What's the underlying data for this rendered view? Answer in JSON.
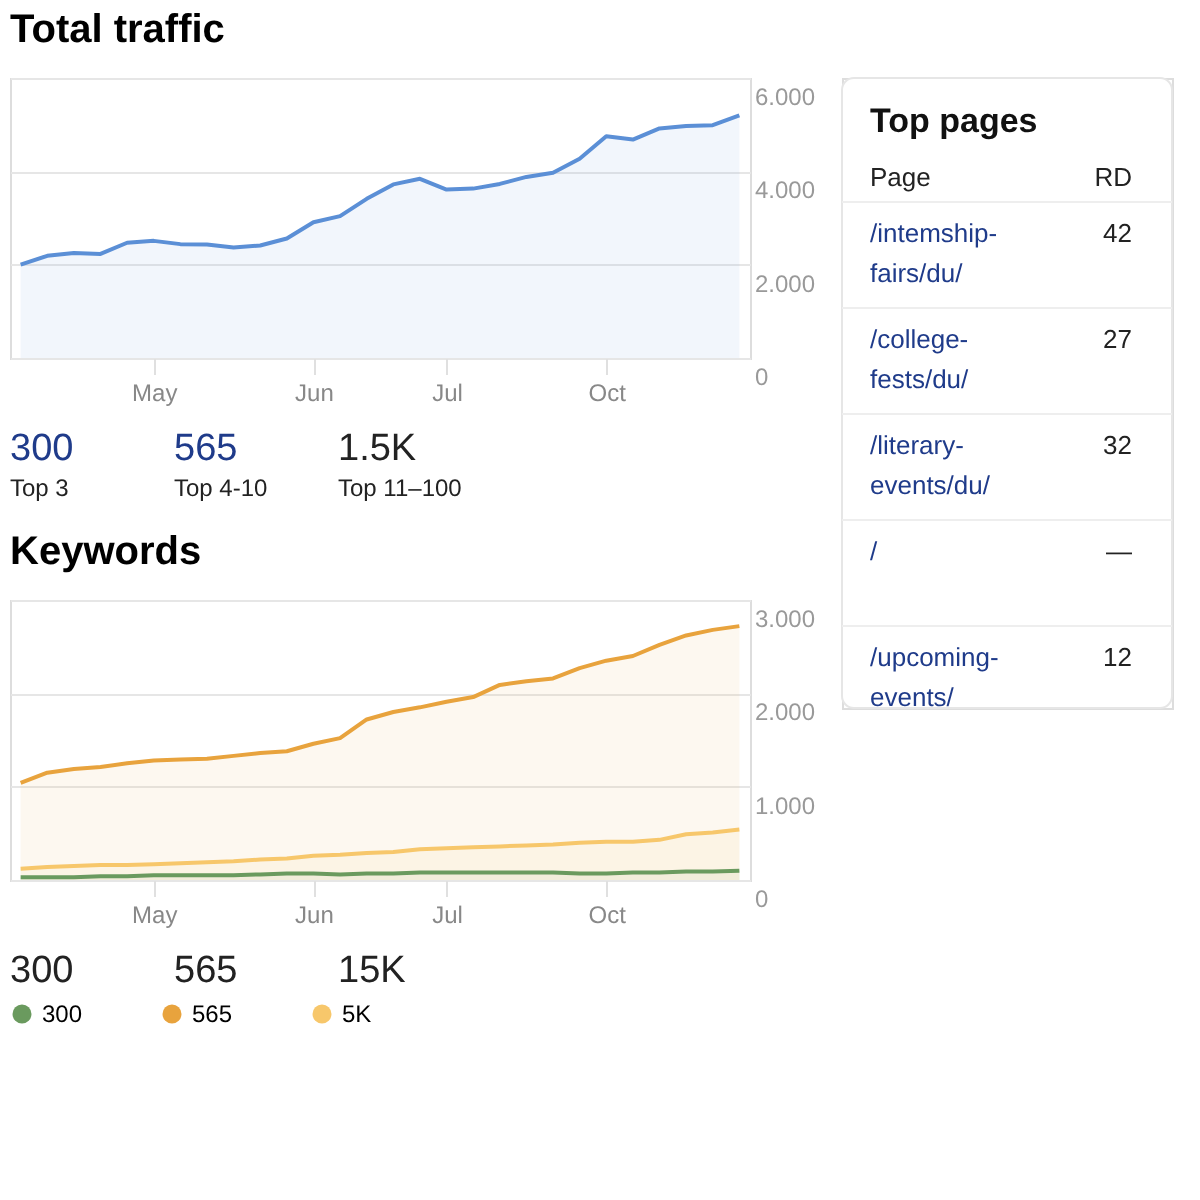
{
  "chart_data": [
    {
      "type": "area",
      "title": "Total traffic",
      "categories": [
        null,
        null,
        null,
        null,
        null,
        "May",
        null,
        null,
        null,
        null,
        null,
        "Jun",
        null,
        null,
        null,
        null,
        "Jul",
        null,
        null,
        null,
        null,
        null,
        "Oct",
        null,
        null,
        null,
        null,
        null
      ],
      "series": [
        {
          "color": "#5b8fd6",
          "values": [
            2.0,
            2.19,
            2.25,
            2.23,
            2.47,
            2.51,
            2.44,
            2.43,
            2.37,
            2.41,
            2.56,
            2.91,
            3.04,
            3.41,
            3.72,
            3.84,
            3.61,
            3.63,
            3.73,
            3.88,
            3.97,
            4.27,
            4.75,
            4.68,
            4.92,
            4.97,
            4.99,
            5.2
          ]
        }
      ],
      "ylim": [
        0,
        6
      ],
      "yticks": [
        0,
        {
          "value": 2,
          "label": "2.000"
        },
        {
          "value": 4,
          "label": "4.000"
        },
        {
          "value": 6,
          "label": "6.000"
        }
      ],
      "grid": "y",
      "annotations": [
        "300",
        "Top 3",
        "565",
        "Top 4-10",
        "1.5K",
        "Top 11–100"
      ]
    },
    {
      "type": "area",
      "title": "Keywords",
      "categories": [
        null,
        null,
        null,
        null,
        null,
        "May",
        null,
        null,
        null,
        null,
        null,
        "Jun",
        null,
        null,
        null,
        null,
        "Jul",
        null,
        null,
        null,
        null,
        null,
        "Oct",
        null,
        null,
        null,
        null,
        null
      ],
      "series": [
        {
          "name": "300",
          "color": "#6a9a5e",
          "values": [
            0.03,
            0.03,
            0.03,
            0.04,
            0.04,
            0.05,
            0.05,
            0.05,
            0.05,
            0.06,
            0.07,
            0.07,
            0.06,
            0.07,
            0.07,
            0.08,
            0.08,
            0.08,
            0.08,
            0.08,
            0.08,
            0.07,
            0.07,
            0.08,
            0.08,
            0.09,
            0.09,
            0.1
          ]
        },
        {
          "name": "565",
          "color": "#e8a33d",
          "values": [
            1.04,
            1.15,
            1.19,
            1.21,
            1.25,
            1.28,
            1.29,
            1.3,
            1.33,
            1.36,
            1.38,
            1.46,
            1.52,
            1.72,
            1.8,
            1.85,
            1.91,
            1.96,
            2.09,
            2.13,
            2.16,
            2.27,
            2.35,
            2.4,
            2.52,
            2.62,
            2.68,
            2.72
          ]
        },
        {
          "name": "5K",
          "color": "#f7c76b",
          "values": [
            0.12,
            0.14,
            0.15,
            0.16,
            0.16,
            0.17,
            0.18,
            0.19,
            0.2,
            0.22,
            0.23,
            0.26,
            0.27,
            0.29,
            0.3,
            0.33,
            0.34,
            0.35,
            0.36,
            0.37,
            0.38,
            0.4,
            0.41,
            0.41,
            0.43,
            0.49,
            0.51,
            0.54
          ]
        }
      ],
      "ylim": [
        0,
        3
      ],
      "yticks": [
        0,
        {
          "value": 1,
          "label": "1.000"
        },
        {
          "value": 2,
          "label": "2.000"
        },
        {
          "value": 3,
          "label": "3.000"
        }
      ],
      "grid": "y",
      "legend": "bottom",
      "annotations": [
        "300",
        "565",
        "15K"
      ]
    },
    {
      "type": "other",
      "title": "Top pages",
      "annotations": [
        "Page",
        "RD",
        "/intemship-fairs/du/",
        "42",
        "/college-fests/du/",
        "27",
        "/literary-events/du/",
        "32",
        "/",
        "—",
        "/upcoming-events/",
        "12"
      ]
    }
  ]
}
